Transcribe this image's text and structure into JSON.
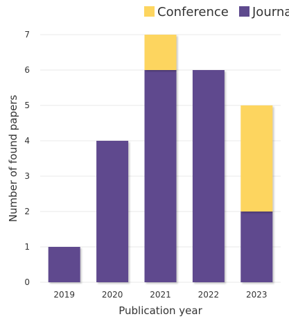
{
  "chart_data": {
    "type": "bar",
    "stacked": true,
    "categories": [
      "2019",
      "2020",
      "2021",
      "2022",
      "2023"
    ],
    "series": [
      {
        "name": "Journal",
        "values": [
          1,
          4,
          6,
          6,
          2
        ],
        "color": "#5e4a8e"
      },
      {
        "name": "Conference",
        "values": [
          0,
          0,
          1,
          0,
          3
        ],
        "color": "#fdd55f"
      }
    ],
    "title": "",
    "xlabel": "Publication year",
    "ylabel": "Number of found papers",
    "ylim": [
      0,
      7
    ],
    "yticks": [
      0,
      1,
      2,
      3,
      4,
      5,
      6,
      7
    ],
    "grid": true,
    "legend": {
      "position": "top-right",
      "order": [
        "Conference",
        "Journal"
      ]
    }
  }
}
